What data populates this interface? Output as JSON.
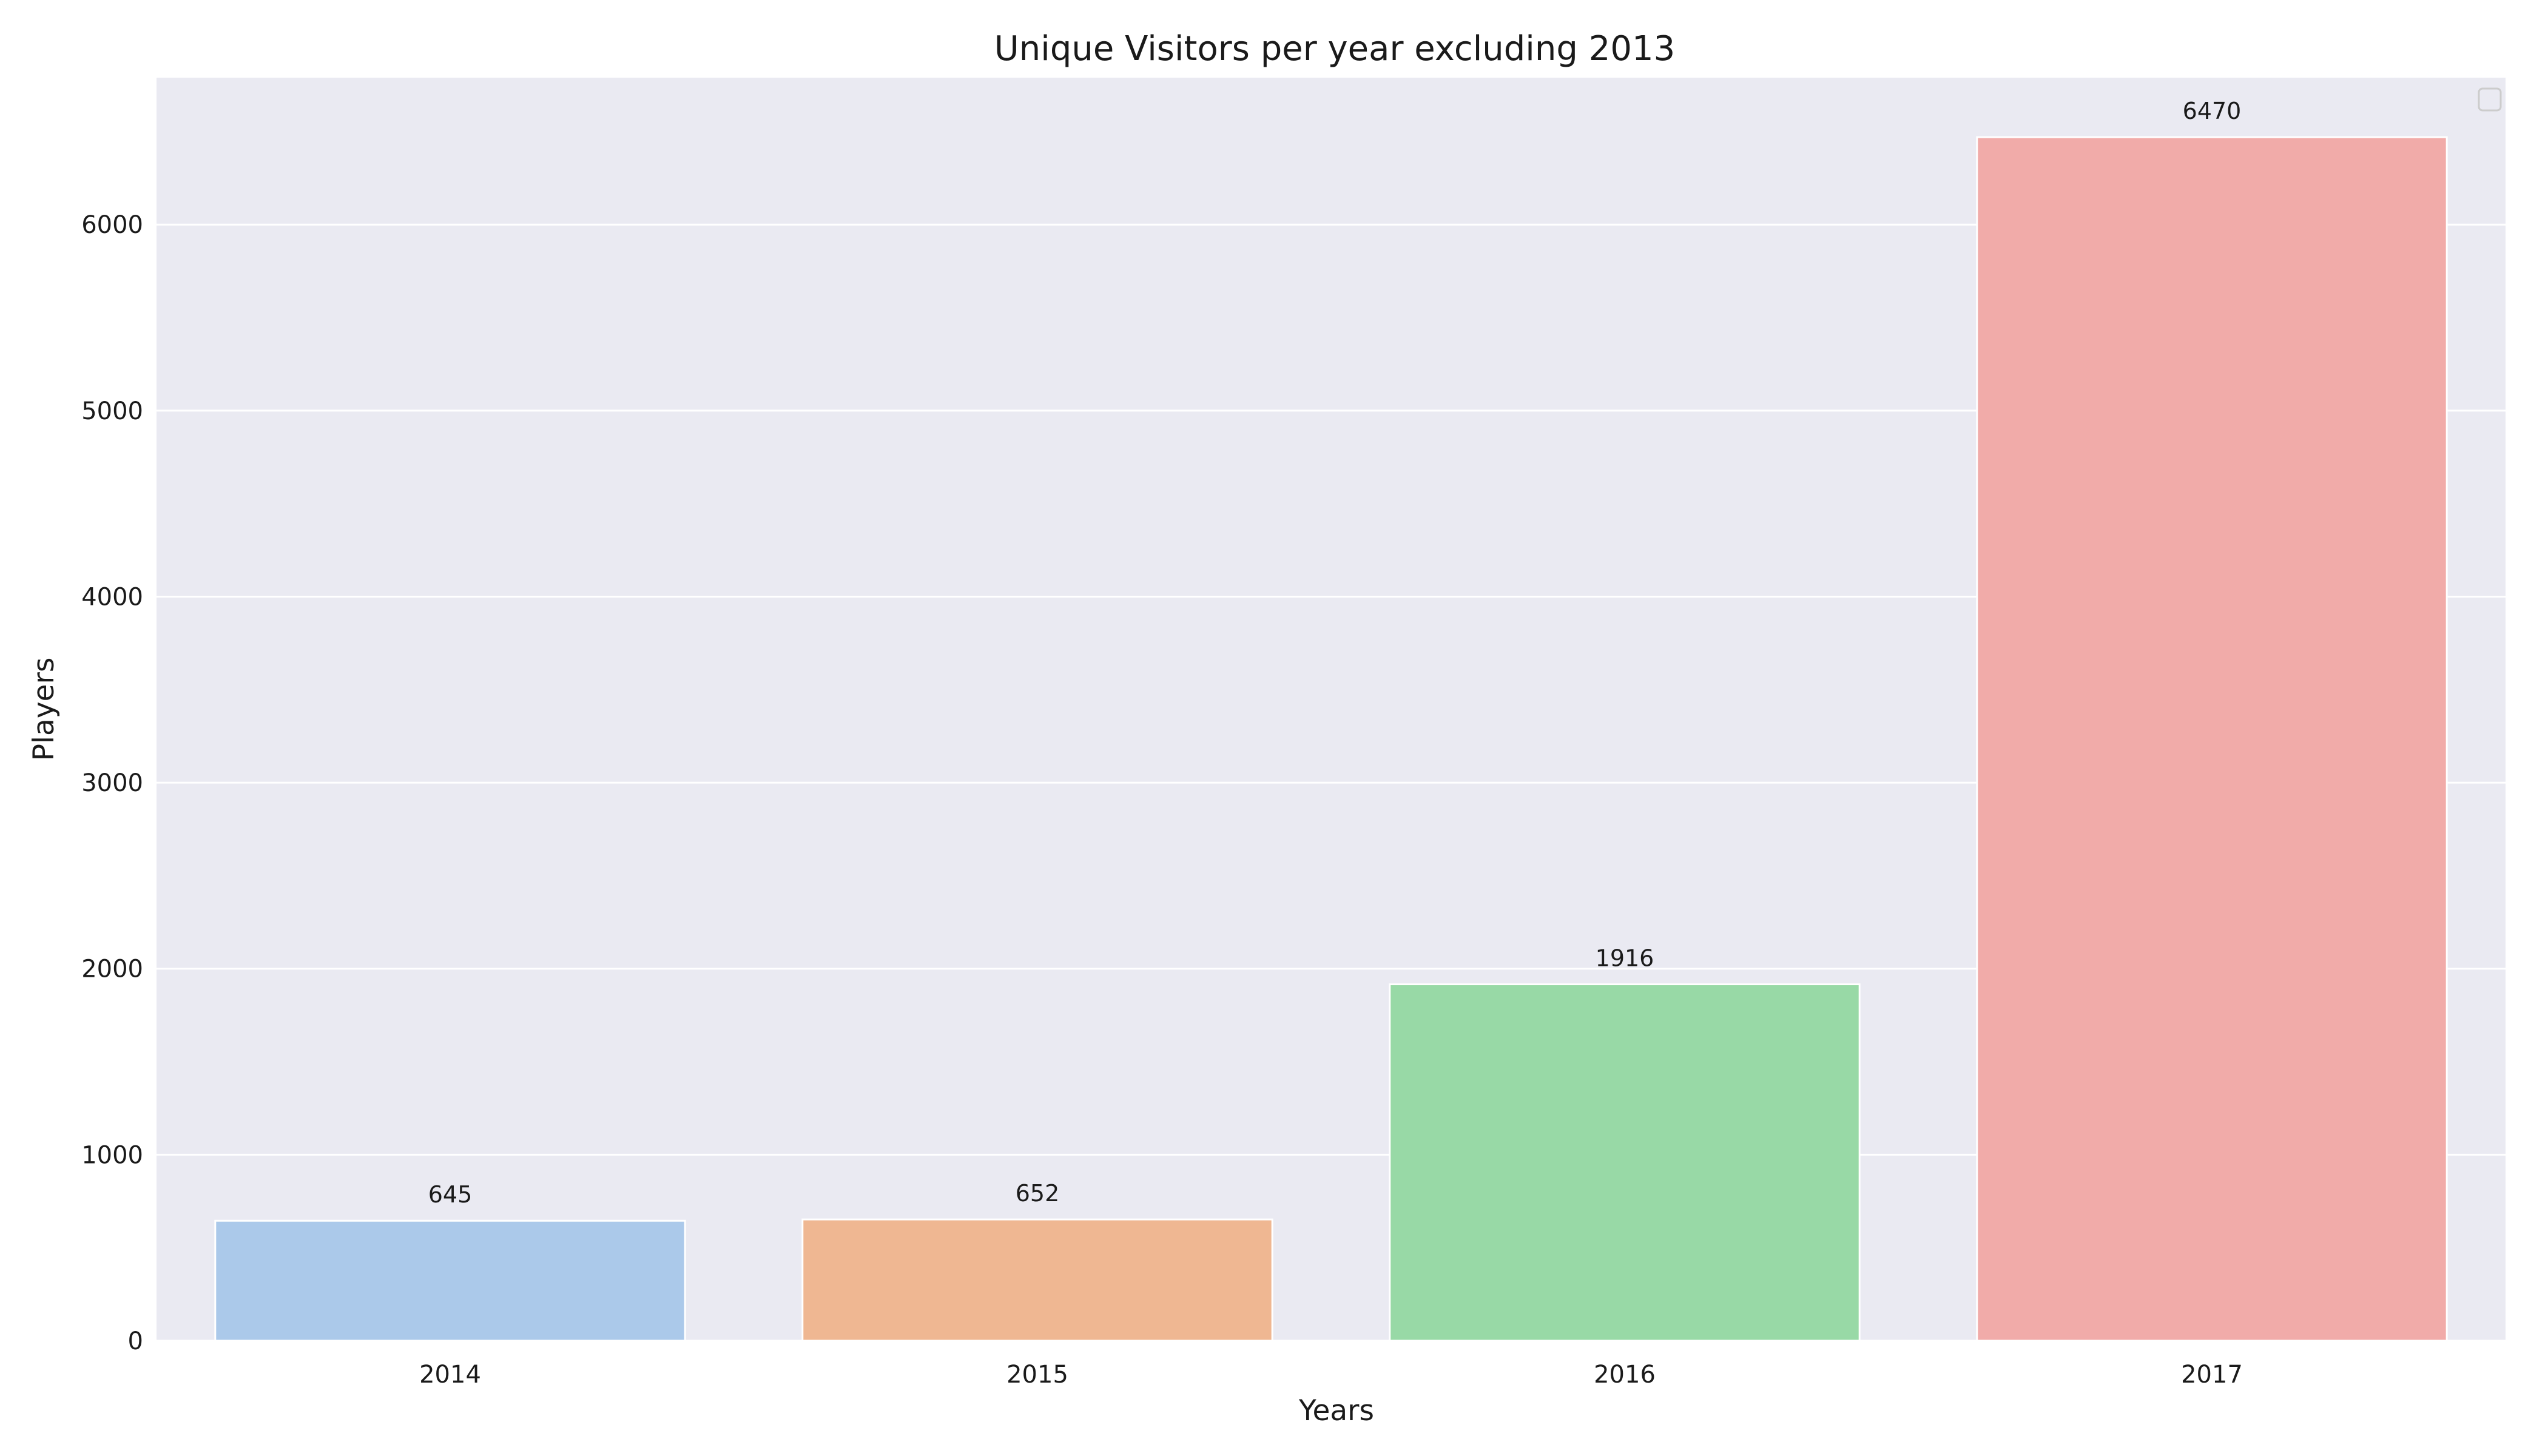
{
  "chart_data": {
    "type": "bar",
    "title": "Unique Visitors per year excluding 2013",
    "xlabel": "Years",
    "ylabel": "Players",
    "categories": [
      "2014",
      "2015",
      "2016",
      "2017"
    ],
    "values": [
      645,
      652,
      1916,
      6470
    ],
    "data_labels": [
      "645",
      "652",
      "1916",
      "6470"
    ],
    "ylim": [
      0,
      6790
    ],
    "yticks": [
      0,
      1000,
      2000,
      3000,
      4000,
      5000,
      6000
    ],
    "ytick_labels": [
      "0",
      "1000",
      "2000",
      "3000",
      "4000",
      "5000",
      "6000"
    ],
    "grid": true,
    "legend": "top-right, empty",
    "colors": [
      "#abc9ea",
      "#efb792",
      "#98d9a6",
      "#f1aba9"
    ],
    "background_color": "#eaeaf2"
  }
}
